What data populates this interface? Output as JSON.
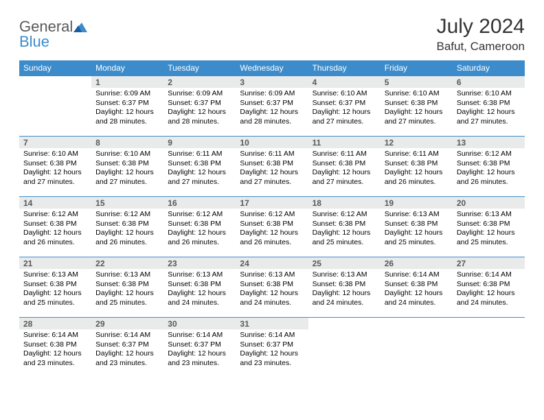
{
  "logo": {
    "general": "General",
    "blue": "Blue"
  },
  "title": "July 2024",
  "location": "Bafut, Cameroon",
  "colors": {
    "header_bg": "#3c8ccc",
    "header_text": "#ffffff",
    "daynum_bg": "#e9eaea",
    "daynum_text": "#58595b",
    "border": "#3c8ccc",
    "body_text": "#000000",
    "logo_gray": "#58595b",
    "logo_blue": "#3c8ccc"
  },
  "days_of_week": [
    "Sunday",
    "Monday",
    "Tuesday",
    "Wednesday",
    "Thursday",
    "Friday",
    "Saturday"
  ],
  "weeks": [
    [
      {},
      {
        "n": "1",
        "sr": "Sunrise: 6:09 AM",
        "ss": "Sunset: 6:37 PM",
        "dl": "Daylight: 12 hours and 28 minutes."
      },
      {
        "n": "2",
        "sr": "Sunrise: 6:09 AM",
        "ss": "Sunset: 6:37 PM",
        "dl": "Daylight: 12 hours and 28 minutes."
      },
      {
        "n": "3",
        "sr": "Sunrise: 6:09 AM",
        "ss": "Sunset: 6:37 PM",
        "dl": "Daylight: 12 hours and 28 minutes."
      },
      {
        "n": "4",
        "sr": "Sunrise: 6:10 AM",
        "ss": "Sunset: 6:37 PM",
        "dl": "Daylight: 12 hours and 27 minutes."
      },
      {
        "n": "5",
        "sr": "Sunrise: 6:10 AM",
        "ss": "Sunset: 6:38 PM",
        "dl": "Daylight: 12 hours and 27 minutes."
      },
      {
        "n": "6",
        "sr": "Sunrise: 6:10 AM",
        "ss": "Sunset: 6:38 PM",
        "dl": "Daylight: 12 hours and 27 minutes."
      }
    ],
    [
      {
        "n": "7",
        "sr": "Sunrise: 6:10 AM",
        "ss": "Sunset: 6:38 PM",
        "dl": "Daylight: 12 hours and 27 minutes."
      },
      {
        "n": "8",
        "sr": "Sunrise: 6:10 AM",
        "ss": "Sunset: 6:38 PM",
        "dl": "Daylight: 12 hours and 27 minutes."
      },
      {
        "n": "9",
        "sr": "Sunrise: 6:11 AM",
        "ss": "Sunset: 6:38 PM",
        "dl": "Daylight: 12 hours and 27 minutes."
      },
      {
        "n": "10",
        "sr": "Sunrise: 6:11 AM",
        "ss": "Sunset: 6:38 PM",
        "dl": "Daylight: 12 hours and 27 minutes."
      },
      {
        "n": "11",
        "sr": "Sunrise: 6:11 AM",
        "ss": "Sunset: 6:38 PM",
        "dl": "Daylight: 12 hours and 27 minutes."
      },
      {
        "n": "12",
        "sr": "Sunrise: 6:11 AM",
        "ss": "Sunset: 6:38 PM",
        "dl": "Daylight: 12 hours and 26 minutes."
      },
      {
        "n": "13",
        "sr": "Sunrise: 6:12 AM",
        "ss": "Sunset: 6:38 PM",
        "dl": "Daylight: 12 hours and 26 minutes."
      }
    ],
    [
      {
        "n": "14",
        "sr": "Sunrise: 6:12 AM",
        "ss": "Sunset: 6:38 PM",
        "dl": "Daylight: 12 hours and 26 minutes."
      },
      {
        "n": "15",
        "sr": "Sunrise: 6:12 AM",
        "ss": "Sunset: 6:38 PM",
        "dl": "Daylight: 12 hours and 26 minutes."
      },
      {
        "n": "16",
        "sr": "Sunrise: 6:12 AM",
        "ss": "Sunset: 6:38 PM",
        "dl": "Daylight: 12 hours and 26 minutes."
      },
      {
        "n": "17",
        "sr": "Sunrise: 6:12 AM",
        "ss": "Sunset: 6:38 PM",
        "dl": "Daylight: 12 hours and 26 minutes."
      },
      {
        "n": "18",
        "sr": "Sunrise: 6:12 AM",
        "ss": "Sunset: 6:38 PM",
        "dl": "Daylight: 12 hours and 25 minutes."
      },
      {
        "n": "19",
        "sr": "Sunrise: 6:13 AM",
        "ss": "Sunset: 6:38 PM",
        "dl": "Daylight: 12 hours and 25 minutes."
      },
      {
        "n": "20",
        "sr": "Sunrise: 6:13 AM",
        "ss": "Sunset: 6:38 PM",
        "dl": "Daylight: 12 hours and 25 minutes."
      }
    ],
    [
      {
        "n": "21",
        "sr": "Sunrise: 6:13 AM",
        "ss": "Sunset: 6:38 PM",
        "dl": "Daylight: 12 hours and 25 minutes."
      },
      {
        "n": "22",
        "sr": "Sunrise: 6:13 AM",
        "ss": "Sunset: 6:38 PM",
        "dl": "Daylight: 12 hours and 25 minutes."
      },
      {
        "n": "23",
        "sr": "Sunrise: 6:13 AM",
        "ss": "Sunset: 6:38 PM",
        "dl": "Daylight: 12 hours and 24 minutes."
      },
      {
        "n": "24",
        "sr": "Sunrise: 6:13 AM",
        "ss": "Sunset: 6:38 PM",
        "dl": "Daylight: 12 hours and 24 minutes."
      },
      {
        "n": "25",
        "sr": "Sunrise: 6:13 AM",
        "ss": "Sunset: 6:38 PM",
        "dl": "Daylight: 12 hours and 24 minutes."
      },
      {
        "n": "26",
        "sr": "Sunrise: 6:14 AM",
        "ss": "Sunset: 6:38 PM",
        "dl": "Daylight: 12 hours and 24 minutes."
      },
      {
        "n": "27",
        "sr": "Sunrise: 6:14 AM",
        "ss": "Sunset: 6:38 PM",
        "dl": "Daylight: 12 hours and 24 minutes."
      }
    ],
    [
      {
        "n": "28",
        "sr": "Sunrise: 6:14 AM",
        "ss": "Sunset: 6:38 PM",
        "dl": "Daylight: 12 hours and 23 minutes."
      },
      {
        "n": "29",
        "sr": "Sunrise: 6:14 AM",
        "ss": "Sunset: 6:37 PM",
        "dl": "Daylight: 12 hours and 23 minutes."
      },
      {
        "n": "30",
        "sr": "Sunrise: 6:14 AM",
        "ss": "Sunset: 6:37 PM",
        "dl": "Daylight: 12 hours and 23 minutes."
      },
      {
        "n": "31",
        "sr": "Sunrise: 6:14 AM",
        "ss": "Sunset: 6:37 PM",
        "dl": "Daylight: 12 hours and 23 minutes."
      },
      {},
      {},
      {}
    ]
  ]
}
